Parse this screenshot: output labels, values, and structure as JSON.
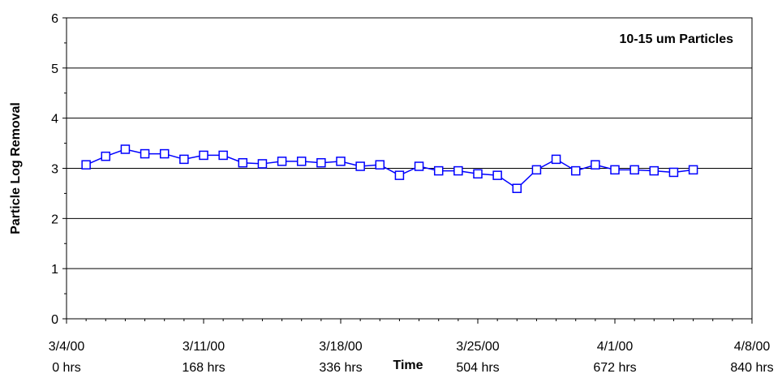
{
  "chart_data": {
    "type": "line",
    "annotation": "10-15 um Particles",
    "xlabel": "Time",
    "ylabel": "Particle Log Removal",
    "ylim": [
      0,
      6
    ],
    "y_ticks": [
      "0",
      "1",
      "2",
      "3",
      "4",
      "5",
      "6"
    ],
    "grid": true,
    "x_ticks": [
      {
        "date": "3/4/00",
        "hours": "0 hrs"
      },
      {
        "date": "3/11/00",
        "hours": "168 hrs"
      },
      {
        "date": "3/18/00",
        "hours": "336 hrs"
      },
      {
        "date": "3/25/00",
        "hours": "504 hrs"
      },
      {
        "date": "4/1/00",
        "hours": "672 hrs"
      },
      {
        "date": "4/8/00",
        "hours": "840 hrs"
      }
    ],
    "xlim": [
      "2000-03-04",
      "2000-04-08"
    ],
    "series": [
      {
        "color": "#0000ff",
        "marker": "square",
        "points": [
          {
            "x": "2000-03-05",
            "y": 3.07
          },
          {
            "x": "2000-03-06",
            "y": 3.24
          },
          {
            "x": "2000-03-07",
            "y": 3.38
          },
          {
            "x": "2000-03-08",
            "y": 3.29
          },
          {
            "x": "2000-03-09",
            "y": 3.29
          },
          {
            "x": "2000-03-10",
            "y": 3.18
          },
          {
            "x": "2000-03-11",
            "y": 3.26
          },
          {
            "x": "2000-03-12",
            "y": 3.26
          },
          {
            "x": "2000-03-13",
            "y": 3.11
          },
          {
            "x": "2000-03-14",
            "y": 3.09
          },
          {
            "x": "2000-03-15",
            "y": 3.14
          },
          {
            "x": "2000-03-16",
            "y": 3.14
          },
          {
            "x": "2000-03-17",
            "y": 3.11
          },
          {
            "x": "2000-03-18",
            "y": 3.14
          },
          {
            "x": "2000-03-19",
            "y": 3.04
          },
          {
            "x": "2000-03-20",
            "y": 3.07
          },
          {
            "x": "2000-03-21",
            "y": 2.86
          },
          {
            "x": "2000-03-22",
            "y": 3.04
          },
          {
            "x": "2000-03-23",
            "y": 2.95
          },
          {
            "x": "2000-03-24",
            "y": 2.95
          },
          {
            "x": "2000-03-25",
            "y": 2.89
          },
          {
            "x": "2000-03-26",
            "y": 2.86
          },
          {
            "x": "2000-03-27",
            "y": 2.6
          },
          {
            "x": "2000-03-28",
            "y": 2.97
          },
          {
            "x": "2000-03-29",
            "y": 3.18
          },
          {
            "x": "2000-03-30",
            "y": 2.95
          },
          {
            "x": "2000-03-31",
            "y": 3.07
          },
          {
            "x": "2000-04-01",
            "y": 2.97
          },
          {
            "x": "2000-04-02",
            "y": 2.97
          },
          {
            "x": "2000-04-03",
            "y": 2.95
          },
          {
            "x": "2000-04-04",
            "y": 2.92
          },
          {
            "x": "2000-04-05",
            "y": 2.97
          }
        ]
      }
    ]
  }
}
